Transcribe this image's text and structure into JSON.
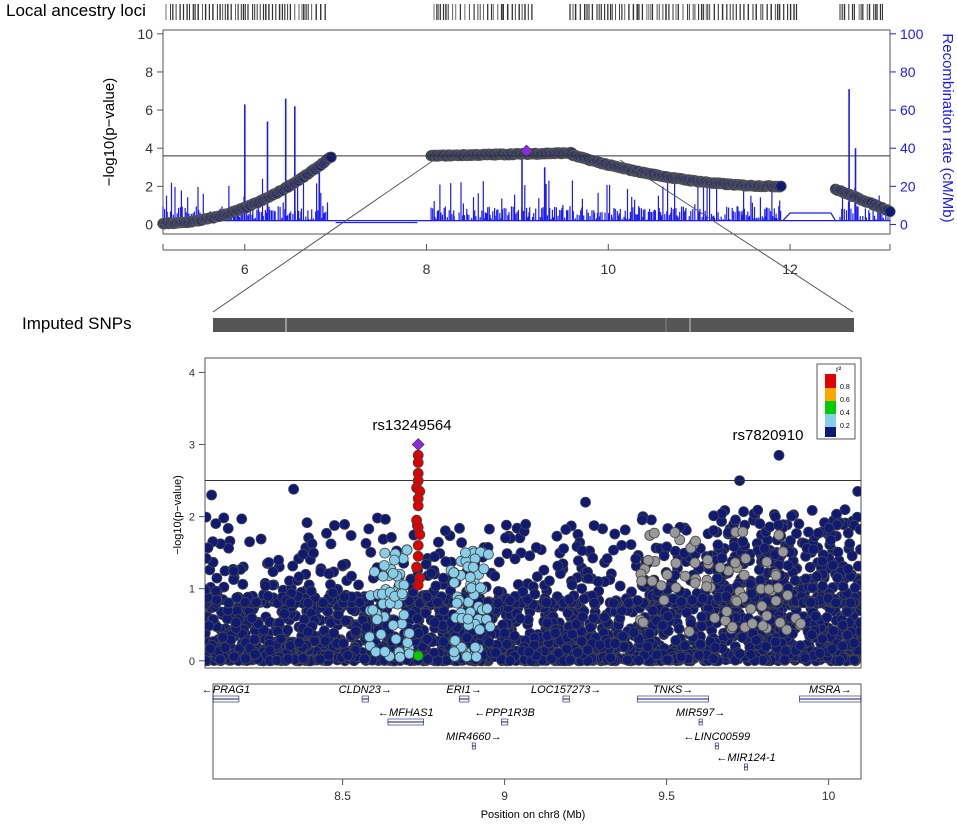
{
  "title_local_ancestry": "Local ancestry loci",
  "title_imputed": "Imputed SNPs",
  "colors": {
    "snp": "#0f1a75",
    "recomb": "#1a1aff",
    "lead": "#8a2be2",
    "r2_08": "#e00000",
    "r2_06": "#ffa500",
    "r2_04": "#00cc00",
    "r2_02": "#87ceeb",
    "r2_00": "#0a1a7a",
    "grey": "#999999"
  },
  "chart_data": [
    {
      "type": "scatter",
      "name": "local-ancestry-plot",
      "xlabel": "",
      "ylabel": "−log10(p−value)",
      "y2label": "Recombination rate (cM/Mb)",
      "xlim": [
        5.1,
        13.1
      ],
      "ylim": [
        -0.5,
        10.2
      ],
      "y2lim": [
        -5,
        102
      ],
      "xticks": [
        "6",
        "8",
        "10",
        "12"
      ],
      "xtick_values": [
        6,
        8,
        10,
        12
      ],
      "yticks": [
        "0",
        "2",
        "4",
        "6",
        "8",
        "10"
      ],
      "y2ticks": [
        "0",
        "20",
        "40",
        "60",
        "80",
        "100"
      ],
      "threshold": 3.6,
      "lead_snp": {
        "x": 9.1,
        "y": 3.85
      },
      "snp_segments": [
        {
          "x_start": 5.1,
          "x_end": 6.95,
          "y_start": 0.05,
          "y_end": 3.55,
          "curve": "convex"
        },
        {
          "x_start": 8.05,
          "x_end": 9.6,
          "y_start": 3.6,
          "y_end": 3.75,
          "curve": "flat"
        },
        {
          "x_start": 9.6,
          "x_end": 11.9,
          "y_start": 3.65,
          "y_end": 2.0,
          "curve": "concave"
        },
        {
          "x_start": 12.5,
          "x_end": 13.1,
          "y_start": 1.85,
          "y_end": 0.7,
          "curve": "linear"
        }
      ],
      "recombination_peaks": [
        {
          "x": 6.0,
          "rate": 63
        },
        {
          "x": 6.25,
          "rate": 54
        },
        {
          "x": 6.45,
          "rate": 66
        },
        {
          "x": 6.55,
          "rate": 62
        },
        {
          "x": 6.82,
          "rate": 34
        },
        {
          "x": 9.05,
          "rate": 40
        },
        {
          "x": 9.3,
          "rate": 30
        },
        {
          "x": 12.65,
          "rate": 71
        },
        {
          "x": 12.72,
          "rate": 40
        }
      ],
      "recombination_flat": {
        "x_start": 12.0,
        "x_end": 12.45,
        "rate": 6
      }
    },
    {
      "type": "scatter",
      "name": "imputed-snp-plot",
      "xlabel": "Position on chr8 (Mb)",
      "ylabel": "−log10(p−value)",
      "xlim": [
        8.1,
        10.1
      ],
      "ylim": [
        -0.1,
        4.2
      ],
      "xticks": [
        "8.5",
        "9",
        "9.5",
        "10"
      ],
      "xtick_values": [
        8.5,
        9.0,
        9.5,
        10.0
      ],
      "yticks": [
        "0",
        "1",
        "2",
        "3",
        "4"
      ],
      "threshold": 2.5,
      "legend": {
        "title": "r²",
        "labels": [
          "0.8",
          "0.6",
          "0.4",
          "0.2"
        ],
        "position": "top-right"
      },
      "annotations": [
        {
          "text": "rs13249564",
          "x": 8.75,
          "y": 3.0
        },
        {
          "text": "rs7820910",
          "x": 9.85,
          "y": 2.85
        }
      ],
      "lead_snp": {
        "x": 8.75,
        "y": 3.0
      },
      "red_snps": [
        {
          "x": 8.75,
          "y": 2.85
        },
        {
          "x": 8.75,
          "y": 2.75
        },
        {
          "x": 8.75,
          "y": 2.6
        },
        {
          "x": 8.75,
          "y": 2.5
        },
        {
          "x": 8.745,
          "y": 2.4
        },
        {
          "x": 8.755,
          "y": 2.35
        },
        {
          "x": 8.75,
          "y": 2.25
        },
        {
          "x": 8.75,
          "y": 2.15
        },
        {
          "x": 8.745,
          "y": 1.95
        },
        {
          "x": 8.75,
          "y": 1.85
        },
        {
          "x": 8.755,
          "y": 1.75
        },
        {
          "x": 8.75,
          "y": 1.6
        },
        {
          "x": 8.75,
          "y": 1.45
        },
        {
          "x": 8.745,
          "y": 1.3
        },
        {
          "x": 8.755,
          "y": 1.15
        },
        {
          "x": 8.75,
          "y": 1.05
        }
      ],
      "green_snp": {
        "x": 8.75,
        "y": 0.07
      },
      "top_snps": [
        {
          "x": 9.73,
          "y": 2.5
        },
        {
          "x": 9.85,
          "y": 2.85
        },
        {
          "x": 8.12,
          "y": 2.3
        },
        {
          "x": 8.37,
          "y": 2.38
        },
        {
          "x": 9.26,
          "y": 2.2
        },
        {
          "x": 10.09,
          "y": 2.35
        }
      ]
    }
  ],
  "genes": [
    {
      "name": "PRAG1",
      "row": 1,
      "start": 8.1,
      "end": 8.18,
      "dir": "left"
    },
    {
      "name": "CLDN23",
      "row": 1,
      "start": 8.56,
      "end": 8.58,
      "dir": "right"
    },
    {
      "name": "ERI1",
      "row": 1,
      "start": 8.86,
      "end": 8.89,
      "dir": "right"
    },
    {
      "name": "LOC157273",
      "row": 1,
      "start": 9.18,
      "end": 9.2,
      "dir": "right"
    },
    {
      "name": "TNKS",
      "row": 1,
      "start": 9.41,
      "end": 9.63,
      "dir": "right"
    },
    {
      "name": "MSRA",
      "row": 1,
      "start": 9.91,
      "end": 10.1,
      "dir": "right"
    },
    {
      "name": "MFHAS1",
      "row": 2,
      "start": 8.64,
      "end": 8.75,
      "dir": "left"
    },
    {
      "name": "PPP1R3B",
      "row": 2,
      "start": 8.99,
      "end": 9.01,
      "dir": "left"
    },
    {
      "name": "MIR597",
      "row": 2,
      "start": 9.6,
      "end": 9.61,
      "dir": "right"
    },
    {
      "name": "MIR4660",
      "row": 3,
      "start": 8.9,
      "end": 8.91,
      "dir": "right"
    },
    {
      "name": "LINC00599",
      "row": 3,
      "start": 9.65,
      "end": 9.66,
      "dir": "left"
    },
    {
      "name": "MIR124-1",
      "row": 4,
      "start": 9.74,
      "end": 9.75,
      "dir": "left"
    }
  ]
}
